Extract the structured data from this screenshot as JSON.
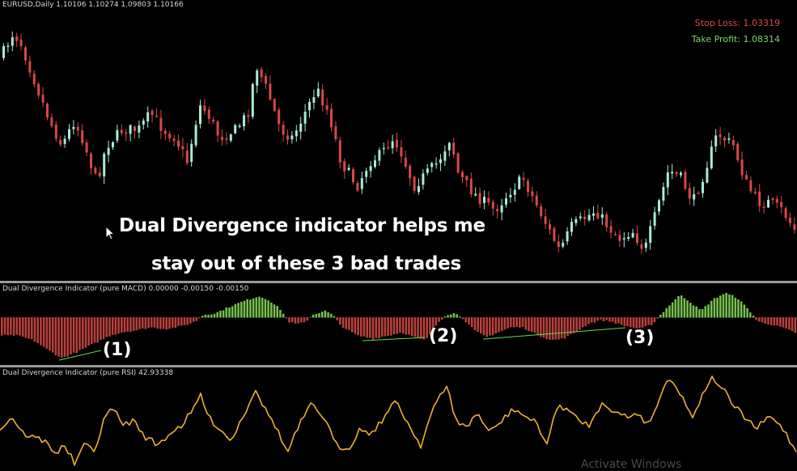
{
  "main": {
    "header": "EURUSD,Daily  1.10106 1.10274 1.09803 1.10166",
    "stop_loss": "Stop Loss: 1.03319",
    "take_profit": "Take Profit: 1.08314",
    "annotation_line1": "Dual Divergence indicator helps me",
    "annotation_line2": "stay out of these 3 bad trades",
    "colors": {
      "bull": "#a6ecd8",
      "bear": "#d94848",
      "stop_loss": "#e04848",
      "take_profit": "#7dd66a"
    }
  },
  "macd": {
    "header": "Dual Divergence Indicator (pure MACD) 0.00000 -0.00150 -0.00150",
    "labels": [
      "(1)",
      "(2)",
      "(3)"
    ],
    "colors": {
      "positive": "#74c04c",
      "negative": "#b8403c",
      "divergence_line": "#55e055"
    }
  },
  "rsi": {
    "header": "Dual Divergence Indicator (pure RSI) 42.93338",
    "color": "#f0b030"
  },
  "watermark": "Activate Windows"
}
